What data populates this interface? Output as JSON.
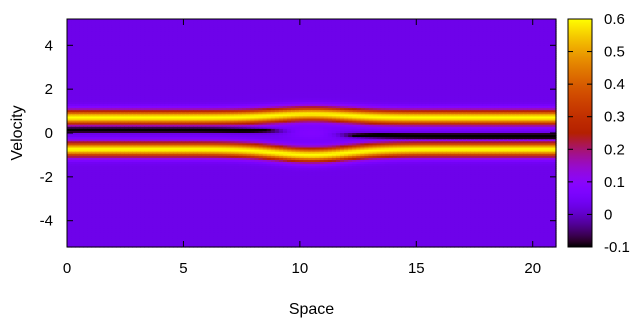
{
  "chart_data": {
    "type": "heatmap",
    "title": "",
    "xlabel": "Space",
    "ylabel": "Velocity",
    "xlim": [
      0,
      21
    ],
    "ylim": [
      -5.2,
      5.2
    ],
    "x_ticks": [
      0,
      5,
      10,
      15,
      20
    ],
    "y_ticks": [
      -4,
      -2,
      0,
      2,
      4
    ],
    "colorbar": {
      "range": [
        -0.1,
        0.6
      ],
      "ticks": [
        -0.1,
        0,
        0.1,
        0.2,
        0.3,
        0.4,
        0.5,
        0.6
      ],
      "tick_labels": [
        "-0.1",
        "0",
        "0.1",
        "0.2",
        "0.3",
        "0.4",
        "0.5",
        "0.6"
      ],
      "colormap": "gnuplot-pm3d"
    },
    "field": {
      "description_values": {
        "background": 0.03,
        "band_peak": 0.6,
        "band_centers_velocity": [
          0.7,
          -0.75
        ],
        "band_width_velocity": 0.32,
        "vortex_center": [
          10.5,
          0.0
        ],
        "vortex_extent": [
          2.2,
          0.55
        ],
        "vortex_core_value": 0.08,
        "low_strip_value": 0.02
      }
    }
  }
}
